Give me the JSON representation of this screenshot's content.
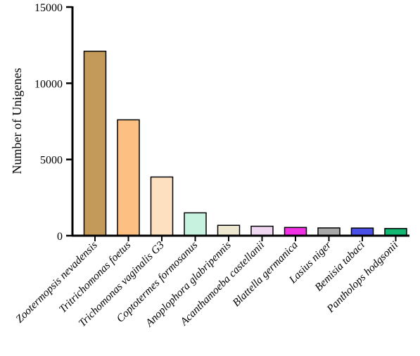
{
  "chart_data": {
    "type": "bar",
    "title": "",
    "xlabel": "",
    "ylabel": "Number of Unigenes",
    "ylim": [
      0,
      15000
    ],
    "yticks": [
      0,
      5000,
      10000,
      15000
    ],
    "grid": false,
    "categories": [
      "Zootermopsis nevadensis",
      "Tritrichomonas foetus",
      "Trichomonas vaginalis G3",
      "Coptotermes formosanus",
      "Anoplophora glabripennis",
      "Acanthamoeba castellanii",
      "Blattella germanica",
      "Lasius niger",
      "Bemisia tabaci",
      "Pantholops hodgsonii"
    ],
    "values": [
      12100,
      7600,
      3850,
      1500,
      680,
      620,
      540,
      510,
      500,
      470
    ],
    "colors": [
      "#c49a5a",
      "#fdbf82",
      "#fde0c0",
      "#c8f2e0",
      "#ede8cf",
      "#f1d8f2",
      "#f230e6",
      "#a8a8a8",
      "#4a4fe8",
      "#12b872"
    ]
  }
}
